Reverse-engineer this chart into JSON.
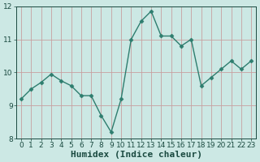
{
  "x": [
    0,
    1,
    2,
    3,
    4,
    5,
    6,
    7,
    8,
    9,
    10,
    11,
    12,
    13,
    14,
    15,
    16,
    17,
    18,
    19,
    20,
    21,
    22,
    23
  ],
  "y": [
    9.2,
    9.5,
    9.7,
    9.95,
    9.75,
    9.6,
    9.3,
    9.3,
    8.7,
    8.2,
    9.2,
    11.0,
    11.55,
    11.85,
    11.1,
    11.1,
    10.8,
    11.0,
    9.6,
    9.85,
    10.1,
    10.35,
    10.1,
    10.35
  ],
  "line_color": "#2e7d6e",
  "marker": "D",
  "marker_size": 2.5,
  "line_width": 1.0,
  "bg_color": "#cce8e4",
  "grid_color_v": "#c8a0a0",
  "grid_color_h": "#c8a0a0",
  "xlabel": "Humidex (Indice chaleur)",
  "ylabel": "",
  "xlim": [
    -0.5,
    23.5
  ],
  "ylim": [
    8,
    12
  ],
  "yticks": [
    8,
    9,
    10,
    11,
    12
  ],
  "xticks": [
    0,
    1,
    2,
    3,
    4,
    5,
    6,
    7,
    8,
    9,
    10,
    11,
    12,
    13,
    14,
    15,
    16,
    17,
    18,
    19,
    20,
    21,
    22,
    23
  ],
  "font_color": "#1a4a40",
  "tick_fontsize": 6.5,
  "label_fontsize": 8
}
